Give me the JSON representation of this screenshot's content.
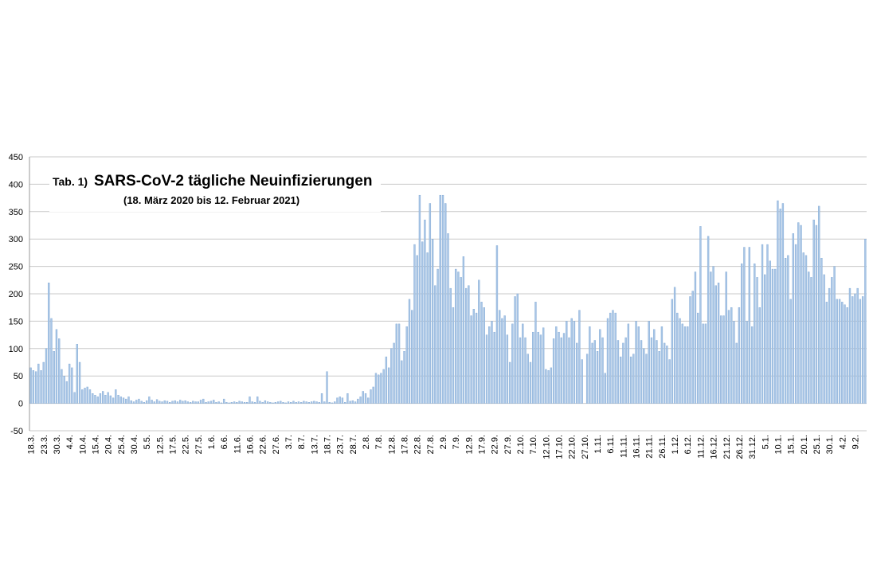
{
  "chart_data": {
    "type": "bar",
    "table_number": "Tab. 1)",
    "title": "SARS-CoV-2 tägliche Neuinfizierungen",
    "subtitle": "(18. März 2020 bis 12. Februar 2021)",
    "color": "#a9c6e6",
    "grid": true,
    "ylim": [
      -50,
      450
    ],
    "yticks": [
      -50,
      0,
      50,
      100,
      150,
      200,
      250,
      300,
      350,
      400,
      450
    ],
    "categories": [
      "18.3.",
      null,
      null,
      null,
      null,
      "23.3.",
      null,
      null,
      null,
      null,
      "30.3.",
      null,
      null,
      null,
      null,
      "4.4.",
      null,
      null,
      null,
      null,
      "10.4.",
      null,
      null,
      null,
      null,
      "15.4.",
      null,
      null,
      null,
      null,
      "20.4.",
      null,
      null,
      null,
      null,
      "25.4.",
      null,
      null,
      null,
      null,
      "30.4.",
      null,
      null,
      null,
      null,
      "5.5.",
      null,
      null,
      null,
      null,
      "12.5.",
      null,
      null,
      null,
      null,
      "17.5.",
      null,
      null,
      null,
      null,
      "22.5.",
      null,
      null,
      null,
      null,
      "27.5.",
      null,
      null,
      null,
      null,
      "1.6.",
      null,
      null,
      null,
      null,
      "6.6.",
      null,
      null,
      null,
      null,
      "11.6.",
      null,
      null,
      null,
      null,
      "16.6.",
      null,
      null,
      null,
      null,
      "22.6.",
      null,
      null,
      null,
      null,
      "27.6.",
      null,
      null,
      null,
      null,
      "3.7.",
      null,
      null,
      null,
      null,
      "8.7.",
      null,
      null,
      null,
      null,
      "13.7.",
      null,
      null,
      null,
      null,
      "18.7.",
      null,
      null,
      null,
      null,
      "23.7.",
      null,
      null,
      null,
      null,
      "28.7.",
      null,
      null,
      null,
      null,
      "2.8.",
      null,
      null,
      null,
      null,
      "7.8.",
      null,
      null,
      null,
      null,
      "12.8.",
      null,
      null,
      null,
      null,
      "17.8.",
      null,
      null,
      null,
      null,
      "22.8.",
      null,
      null,
      null,
      null,
      "27.8.",
      null,
      null,
      null,
      null,
      "2.9.",
      null,
      null,
      null,
      null,
      "7.9.",
      null,
      null,
      null,
      null,
      "12.9.",
      null,
      null,
      null,
      null,
      "17.9.",
      null,
      null,
      null,
      null,
      "22.9.",
      null,
      null,
      null,
      null,
      "27.9.",
      null,
      null,
      null,
      null,
      "2.10.",
      null,
      null,
      null,
      null,
      "7.10.",
      null,
      null,
      null,
      null,
      "12.10.",
      null,
      null,
      null,
      null,
      "17.10.",
      null,
      null,
      null,
      null,
      "22.10.",
      null,
      null,
      null,
      null,
      "27.10.",
      null,
      null,
      null,
      null,
      "1.11.",
      null,
      null,
      null,
      null,
      "6.11.",
      null,
      null,
      null,
      null,
      "11.11.",
      null,
      null,
      null,
      null,
      "16.11.",
      null,
      null,
      null,
      null,
      "21.11.",
      null,
      null,
      null,
      null,
      "26.11.",
      null,
      null,
      null,
      null,
      "1.12.",
      null,
      null,
      null,
      null,
      "6.12.",
      null,
      null,
      null,
      null,
      "11.12.",
      null,
      null,
      null,
      null,
      "16.12.",
      null,
      null,
      null,
      null,
      "21.12.",
      null,
      null,
      null,
      null,
      "26.12.",
      null,
      null,
      null,
      null,
      "31.12.",
      null,
      null,
      null,
      null,
      "5.1.",
      null,
      null,
      null,
      null,
      "10.1.",
      null,
      null,
      null,
      null,
      "15.1.",
      null,
      null,
      null,
      null,
      "20.1.",
      null,
      null,
      null,
      null,
      "25.1.",
      null,
      null,
      null,
      null,
      "30.1.",
      null,
      null,
      null,
      null,
      "4.2.",
      null,
      null,
      null,
      null,
      "9.2.",
      null,
      null,
      null,
      null
    ],
    "values": [
      65,
      60,
      58,
      72,
      60,
      75,
      100,
      220,
      155,
      95,
      135,
      118,
      62,
      50,
      40,
      72,
      65,
      20,
      108,
      75,
      25,
      28,
      30,
      25,
      18,
      15,
      12,
      18,
      22,
      15,
      20,
      14,
      10,
      25,
      15,
      12,
      10,
      8,
      12,
      5,
      3,
      6,
      8,
      4,
      2,
      5,
      12,
      6,
      3,
      7,
      4,
      3,
      5,
      4,
      2,
      4,
      5,
      3,
      6,
      4,
      5,
      3,
      2,
      4,
      3,
      3,
      6,
      8,
      2,
      3,
      4,
      6,
      2,
      3,
      1,
      8,
      2,
      1,
      2,
      3,
      2,
      4,
      3,
      2,
      2,
      12,
      3,
      2,
      12,
      4,
      2,
      5,
      3,
      2,
      1,
      2,
      3,
      4,
      2,
      1,
      3,
      2,
      4,
      2,
      3,
      2,
      4,
      3,
      2,
      3,
      4,
      3,
      2,
      18,
      3,
      58,
      2,
      1,
      3,
      10,
      12,
      10,
      2,
      18,
      4,
      5,
      3,
      8,
      12,
      22,
      18,
      10,
      25,
      30,
      55,
      52,
      55,
      62,
      85,
      65,
      100,
      110,
      145,
      145,
      78,
      95,
      140,
      190,
      170,
      290,
      270,
      380,
      295,
      335,
      275,
      365,
      300,
      215,
      245,
      380,
      380,
      365,
      310,
      210,
      175,
      245,
      240,
      230,
      268,
      210,
      215,
      160,
      172,
      165,
      225,
      185,
      175,
      125,
      140,
      150,
      130,
      288,
      170,
      155,
      160,
      125,
      75,
      145,
      195,
      200,
      120,
      145,
      120,
      90,
      75,
      130,
      185,
      130,
      125,
      138,
      62,
      60,
      65,
      118,
      140,
      130,
      120,
      128,
      150,
      120,
      155,
      150,
      110,
      170,
      80,
      0,
      90,
      140,
      110,
      115,
      95,
      135,
      120,
      55,
      155,
      165,
      170,
      165,
      115,
      85,
      110,
      120,
      145,
      85,
      90,
      150,
      140,
      115,
      100,
      90,
      150,
      120,
      135,
      115,
      95,
      140,
      110,
      105,
      80,
      190,
      212,
      165,
      155,
      145,
      140,
      140,
      195,
      205,
      240,
      165,
      323,
      145,
      145,
      305,
      240,
      250,
      215,
      220,
      160,
      160,
      240,
      170,
      175,
      150,
      110,
      175,
      255,
      285,
      150,
      285,
      140,
      255,
      230,
      175,
      290,
      235,
      290,
      260,
      245,
      245,
      370,
      355,
      365,
      265,
      270,
      190,
      310,
      290,
      330,
      325,
      275,
      270,
      240,
      230,
      335,
      325,
      360,
      265,
      235,
      185,
      210,
      230,
      250,
      190,
      190,
      185,
      180,
      175,
      210,
      195,
      200,
      210,
      190,
      195,
      300
    ]
  }
}
